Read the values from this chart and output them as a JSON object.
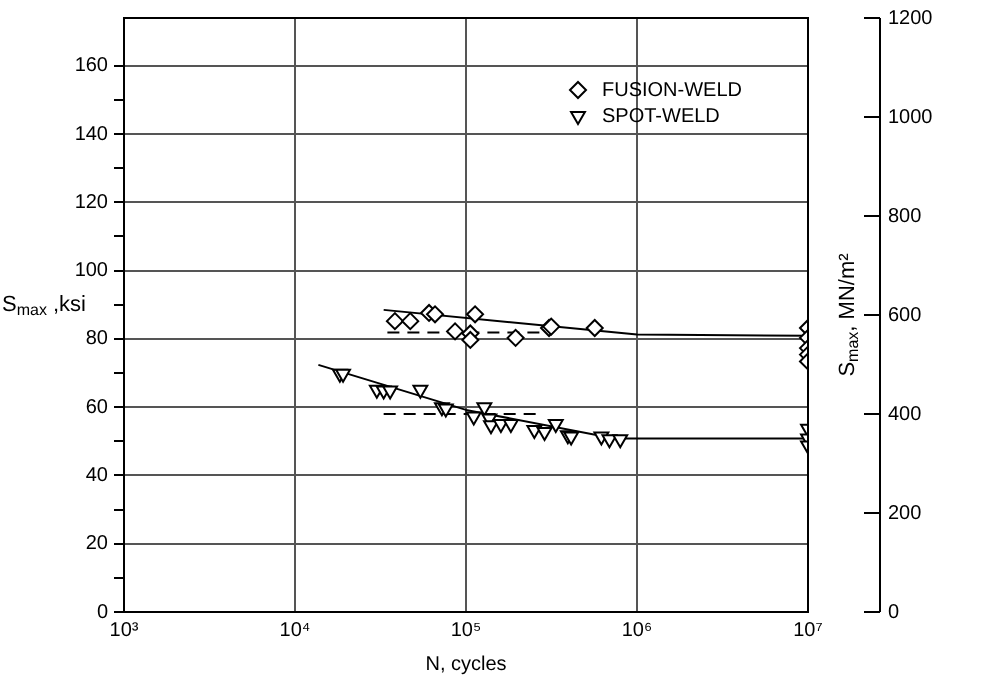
{
  "chart_data": {
    "type": "scatter",
    "xlabel": "N, cycles",
    "ylabel": "S$_{max}$ ,ksi",
    "y2label": "S$_{max}$, MN/m²",
    "log": "x",
    "grid": true,
    "legend": "top right",
    "xlim": [
      1000,
      10000000
    ],
    "xticks": [
      {
        "value": 1000,
        "label": "10³"
      },
      {
        "value": 10000,
        "label": "10⁴"
      },
      {
        "value": 100000,
        "label": "10⁵"
      },
      {
        "value": 1000000,
        "label": "10⁶"
      },
      {
        "value": 10000000,
        "label": "10⁷"
      }
    ],
    "ylim": [
      0,
      174
    ],
    "yticks": [
      0,
      {
        "value": 10,
        "label": null
      },
      20,
      {
        "value": 30,
        "label": null
      },
      40,
      {
        "value": 50,
        "label": null
      },
      60,
      {
        "value": 70,
        "label": null
      },
      80,
      {
        "value": 90,
        "label": null
      },
      100,
      {
        "value": 110,
        "label": null
      },
      120,
      {
        "value": 130,
        "label": null
      },
      140,
      {
        "value": 150,
        "label": null
      },
      160
    ],
    "y2lim": [
      0,
      1200
    ],
    "y2ticks": [
      0,
      200,
      400,
      600,
      800,
      1000,
      1200
    ],
    "series": [
      {
        "name": "FUSION-WELD",
        "marker": "diamond",
        "color": "#000000",
        "x": [
          38400,
          47200,
          60800,
          65900,
          86300,
          106000,
          106000,
          113000,
          195000,
          306000,
          315000,
          566000,
          10000000,
          10000000,
          10000000,
          10000000,
          10000000
        ],
        "values": [
          85.2,
          85.2,
          87.6,
          87.2,
          82.2,
          81.6,
          79.7,
          87.2,
          80.3,
          83.2,
          83.6,
          83.2,
          83.2,
          80.3,
          77.3,
          75.4,
          73.4
        ]
      },
      {
        "name": "SPOT-WELD",
        "marker": "triangle",
        "color": "#000000",
        "x": [
          18300,
          19100,
          30100,
          33000,
          36000,
          54100,
          72300,
          76200,
          111000,
          128000,
          137000,
          140000,
          160000,
          183000,
          251000,
          288000,
          335000,
          394000,
          412000,
          619000,
          690000,
          798000,
          10000000,
          10000000,
          10000000
        ],
        "values": [
          69.8,
          69.8,
          65.1,
          64.9,
          64.9,
          65.1,
          60.0,
          59.6,
          57.3,
          60.0,
          56.7,
          54.7,
          55.1,
          55.1,
          53.3,
          52.7,
          55.1,
          51.8,
          51.4,
          51.4,
          50.6,
          50.6,
          53.7,
          50.8,
          48.8
        ]
      },
      {
        "type": "line",
        "line_style": "solid",
        "color": "#000000",
        "x": [
          33000,
          1000000,
          10000000
        ],
        "values": [
          88.5,
          81.3,
          80.9
        ]
      },
      {
        "type": "line",
        "line_style": "dashed",
        "color": "#000000",
        "x": [
          34700,
          309000
        ],
        "values": [
          81.9,
          81.9
        ]
      },
      {
        "type": "line",
        "line_style": "solid",
        "color": "#000000",
        "x": [
          13700,
          100000,
          740000,
          10000000
        ],
        "values": [
          72.4,
          59.2,
          50.8,
          50.8
        ]
      },
      {
        "type": "line",
        "line_style": "dashed",
        "color": "#000000",
        "x": [
          33000,
          269000
        ],
        "values": [
          58.0,
          58.0
        ]
      }
    ]
  }
}
